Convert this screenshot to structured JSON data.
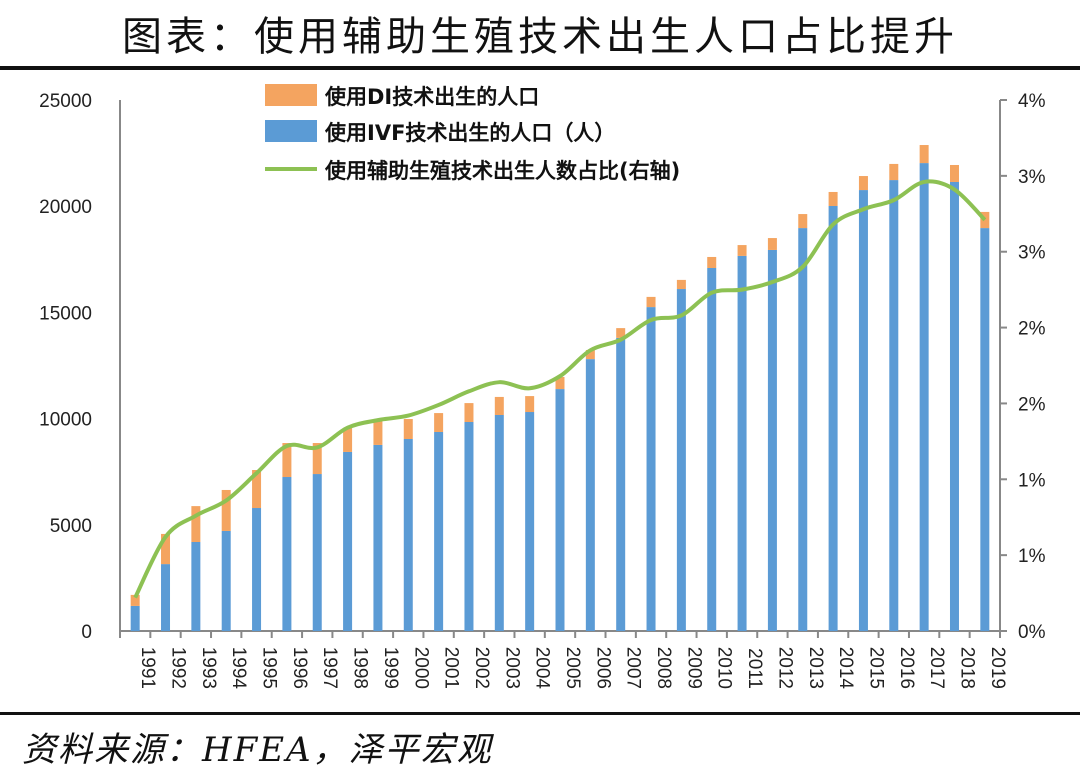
{
  "header": {
    "title": "图表：使用辅助生殖技术出生人口占比提升"
  },
  "footer": {
    "source": "资料来源：HFEA，泽平宏观"
  },
  "chart_data": {
    "type": "bar+line",
    "categories": [
      "1991",
      "1992",
      "1993",
      "1994",
      "1995",
      "1996",
      "1997",
      "1998",
      "1999",
      "2000",
      "2001",
      "2002",
      "2003",
      "2004",
      "2005",
      "2006",
      "2007",
      "2008",
      "2009",
      "2010",
      "2011",
      "2012",
      "2013",
      "2014",
      "2015",
      "2016",
      "2017",
      "2018",
      "2019"
    ],
    "series": [
      {
        "name": "使用IVF技术出生的人口（人）",
        "type": "stacked-bar",
        "axis": "left",
        "color": "#5b9bd5",
        "values": [
          1180,
          3150,
          4190,
          4710,
          5790,
          7250,
          7390,
          8430,
          8760,
          9040,
          9370,
          9840,
          10170,
          10310,
          11390,
          12800,
          13800,
          15250,
          16100,
          17090,
          17660,
          17940,
          18970,
          20010,
          20760,
          21230,
          22030,
          21140,
          18970
        ]
      },
      {
        "name": "使用DI技术出生的人口",
        "type": "stacked-bar",
        "axis": "left",
        "color": "#f4a460",
        "values": [
          520,
          1420,
          1690,
          1930,
          1790,
          1600,
          1460,
          1130,
          1170,
          940,
          890,
          890,
          850,
          750,
          570,
          430,
          460,
          480,
          430,
          520,
          510,
          560,
          660,
          660,
          660,
          760,
          850,
          800,
          760
        ]
      },
      {
        "name": "使用辅助生殖技术出生人数占比(右轴)",
        "type": "line",
        "axis": "right",
        "color": "#8dc153",
        "values": [
          0.22,
          0.62,
          0.76,
          0.86,
          1.04,
          1.22,
          1.21,
          1.34,
          1.39,
          1.42,
          1.49,
          1.58,
          1.64,
          1.6,
          1.68,
          1.85,
          1.92,
          2.05,
          2.08,
          2.23,
          2.25,
          2.3,
          2.4,
          2.68,
          2.78,
          2.84,
          2.96,
          2.91,
          2.71
        ]
      }
    ],
    "left_axis": {
      "ylim": [
        0,
        25000
      ],
      "ticks": [
        "0",
        "5000",
        "10000",
        "15000",
        "20000",
        "25000"
      ]
    },
    "right_axis": {
      "ylim": [
        0,
        3.5
      ],
      "unit": "%",
      "ticks": [
        "0%",
        "1%",
        "1%",
        "2%",
        "2%",
        "3%",
        "3%",
        "4%"
      ]
    },
    "legend": {
      "placement": "top-left",
      "entries": [
        "使用DI技术出生的人口",
        "使用IVF技术出生的人口（人）",
        "使用辅助生殖技术出生人数占比(右轴)"
      ]
    },
    "grid": false
  }
}
